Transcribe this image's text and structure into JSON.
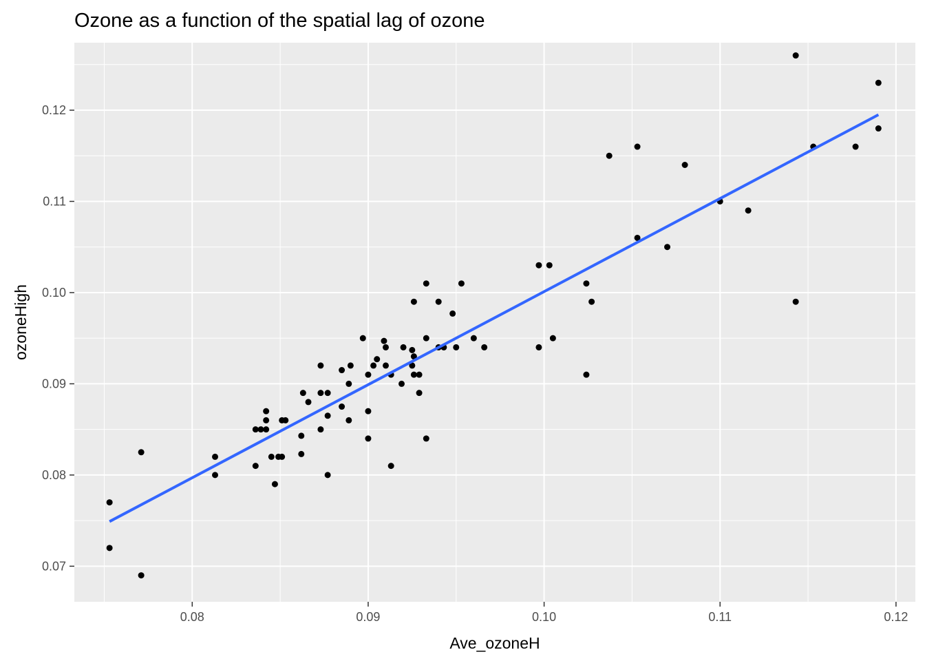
{
  "chart_data": {
    "type": "scatter",
    "title": "Ozone as a function of the spatial lag of ozone",
    "xlabel": "Ave_ozoneH",
    "ylabel": "ozoneHigh",
    "xlim": [
      0.0733,
      0.1211
    ],
    "ylim": [
      0.0661,
      0.1274
    ],
    "x_ticks": [
      0.08,
      0.09,
      0.1,
      0.11,
      0.12
    ],
    "x_tick_labels": [
      "0.08",
      "0.09",
      "0.10",
      "0.11",
      "0.12"
    ],
    "y_ticks": [
      0.07,
      0.08,
      0.09,
      0.1,
      0.11,
      0.12
    ],
    "y_tick_labels": [
      "0.07",
      "0.08",
      "0.09",
      "0.10",
      "0.11",
      "0.12"
    ],
    "grid": true,
    "background": "#ebebeb",
    "point_color": "#000000",
    "fit_line_color": "#3366ff",
    "fit_line": {
      "x": [
        0.0753,
        0.119
      ],
      "y": [
        0.0749,
        0.1195
      ]
    },
    "points": [
      [
        0.0753,
        0.077
      ],
      [
        0.0753,
        0.072
      ],
      [
        0.0771,
        0.0825
      ],
      [
        0.0771,
        0.069
      ],
      [
        0.0813,
        0.082
      ],
      [
        0.0813,
        0.08
      ],
      [
        0.0836,
        0.085
      ],
      [
        0.0836,
        0.081
      ],
      [
        0.0839,
        0.085
      ],
      [
        0.0842,
        0.087
      ],
      [
        0.0842,
        0.086
      ],
      [
        0.0842,
        0.085
      ],
      [
        0.0845,
        0.082
      ],
      [
        0.0847,
        0.079
      ],
      [
        0.0849,
        0.082
      ],
      [
        0.0851,
        0.082
      ],
      [
        0.0851,
        0.086
      ],
      [
        0.0853,
        0.086
      ],
      [
        0.0862,
        0.0843
      ],
      [
        0.0862,
        0.0823
      ],
      [
        0.0863,
        0.089
      ],
      [
        0.0866,
        0.088
      ],
      [
        0.0873,
        0.092
      ],
      [
        0.0873,
        0.089
      ],
      [
        0.0873,
        0.085
      ],
      [
        0.0877,
        0.089
      ],
      [
        0.0877,
        0.0865
      ],
      [
        0.0877,
        0.08
      ],
      [
        0.0885,
        0.0915
      ],
      [
        0.0885,
        0.0875
      ],
      [
        0.0889,
        0.09
      ],
      [
        0.0889,
        0.086
      ],
      [
        0.089,
        0.092
      ],
      [
        0.0897,
        0.095
      ],
      [
        0.09,
        0.091
      ],
      [
        0.09,
        0.087
      ],
      [
        0.09,
        0.084
      ],
      [
        0.0903,
        0.092
      ],
      [
        0.0905,
        0.0927
      ],
      [
        0.0909,
        0.0947
      ],
      [
        0.091,
        0.094
      ],
      [
        0.091,
        0.092
      ],
      [
        0.0913,
        0.091
      ],
      [
        0.0913,
        0.081
      ],
      [
        0.0919,
        0.09
      ],
      [
        0.092,
        0.094
      ],
      [
        0.0925,
        0.0937
      ],
      [
        0.0925,
        0.092
      ],
      [
        0.0926,
        0.093
      ],
      [
        0.0926,
        0.091
      ],
      [
        0.0926,
        0.099
      ],
      [
        0.0929,
        0.091
      ],
      [
        0.0929,
        0.089
      ],
      [
        0.0933,
        0.101
      ],
      [
        0.0933,
        0.095
      ],
      [
        0.0933,
        0.084
      ],
      [
        0.094,
        0.099
      ],
      [
        0.094,
        0.094
      ],
      [
        0.0943,
        0.094
      ],
      [
        0.0948,
        0.0977
      ],
      [
        0.095,
        0.094
      ],
      [
        0.0953,
        0.101
      ],
      [
        0.096,
        0.095
      ],
      [
        0.0966,
        0.094
      ],
      [
        0.0997,
        0.103
      ],
      [
        0.0997,
        0.094
      ],
      [
        0.1003,
        0.103
      ],
      [
        0.1005,
        0.095
      ],
      [
        0.1024,
        0.101
      ],
      [
        0.1024,
        0.091
      ],
      [
        0.1027,
        0.099
      ],
      [
        0.1037,
        0.115
      ],
      [
        0.1053,
        0.116
      ],
      [
        0.1053,
        0.106
      ],
      [
        0.107,
        0.105
      ],
      [
        0.108,
        0.114
      ],
      [
        0.11,
        0.11
      ],
      [
        0.1116,
        0.109
      ],
      [
        0.1143,
        0.126
      ],
      [
        0.1143,
        0.099
      ],
      [
        0.1153,
        0.116
      ],
      [
        0.1177,
        0.116
      ],
      [
        0.119,
        0.123
      ],
      [
        0.119,
        0.118
      ]
    ]
  }
}
